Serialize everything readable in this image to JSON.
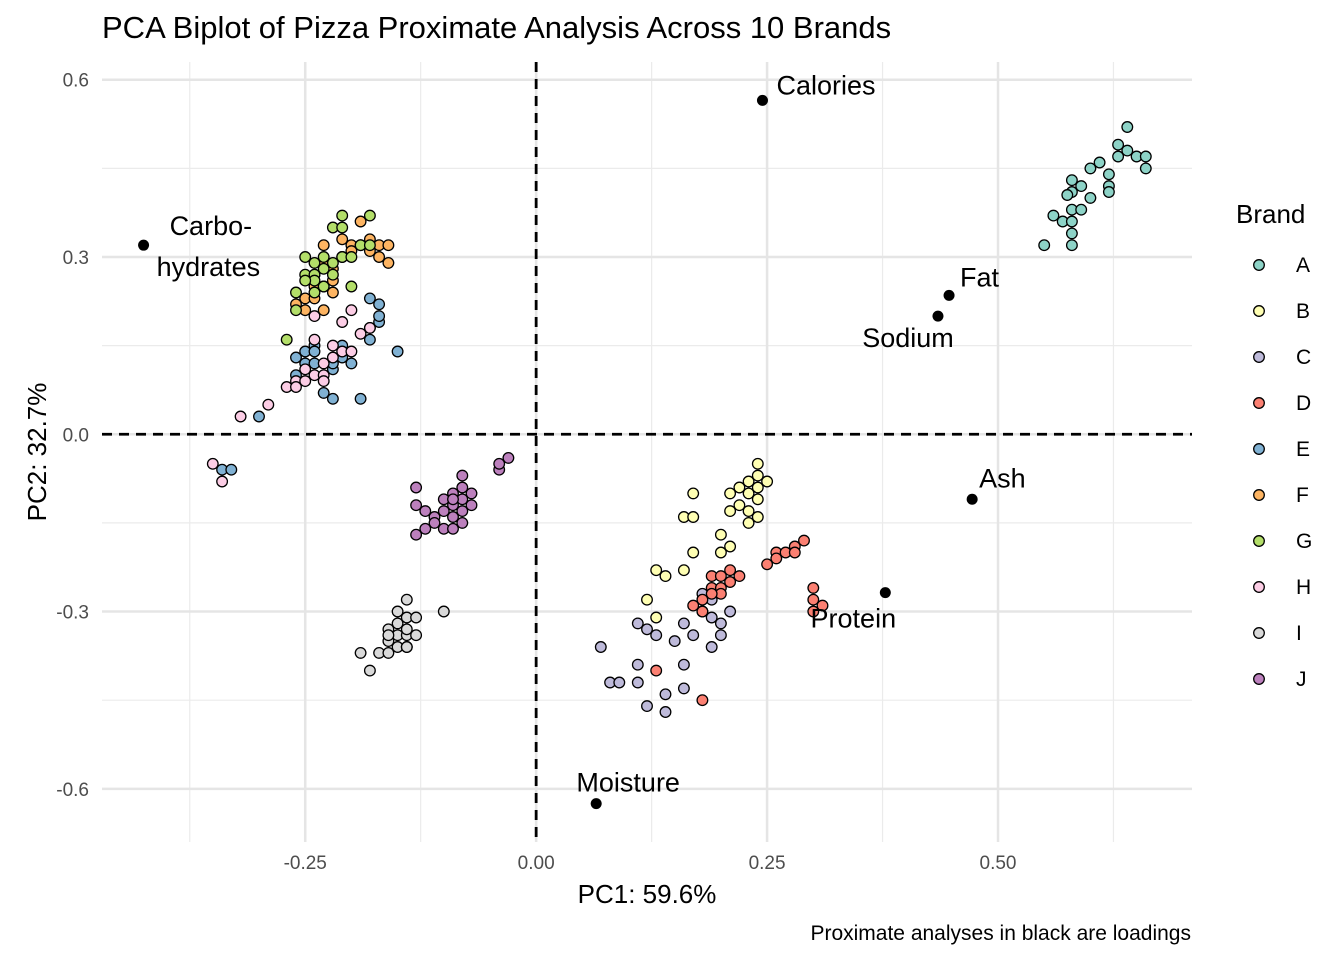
{
  "chart_data": {
    "type": "scatter",
    "title": "PCA Biplot of Pizza Proximate Analysis Across 10 Brands",
    "xlabel": "PC1: 59.6%",
    "ylabel": "PC2: 32.7%",
    "caption": "Proximate analyses in black are loadings",
    "xlim": [
      -0.47,
      0.71
    ],
    "ylim": [
      -0.69,
      0.63
    ],
    "xticks": [
      -0.25,
      0.0,
      0.25,
      0.5
    ],
    "xtick_labels": [
      "-0.25",
      "0.00",
      "0.25",
      "0.50"
    ],
    "yticks": [
      0.6,
      0.3,
      0.0,
      -0.3,
      -0.6
    ],
    "ytick_labels": [
      "0.6",
      "0.3",
      "0.0",
      "-0.3",
      "-0.6"
    ],
    "grid": true,
    "legend": {
      "title": "Brand",
      "position": "right"
    },
    "reference_lines": {
      "x": 0,
      "y": 0,
      "style": "dashed"
    },
    "series": [
      {
        "name": "A",
        "color": "#8DD3C7",
        "points": [
          [
            0.55,
            0.32
          ],
          [
            0.56,
            0.37
          ],
          [
            0.57,
            0.36
          ],
          [
            0.58,
            0.34
          ],
          [
            0.58,
            0.32
          ],
          [
            0.58,
            0.38
          ],
          [
            0.58,
            0.36
          ],
          [
            0.59,
            0.38
          ],
          [
            0.58,
            0.41
          ],
          [
            0.58,
            0.43
          ],
          [
            0.59,
            0.42
          ],
          [
            0.6,
            0.4
          ],
          [
            0.6,
            0.45
          ],
          [
            0.61,
            0.46
          ],
          [
            0.62,
            0.42
          ],
          [
            0.62,
            0.44
          ],
          [
            0.63,
            0.47
          ],
          [
            0.63,
            0.49
          ],
          [
            0.64,
            0.48
          ],
          [
            0.64,
            0.52
          ],
          [
            0.65,
            0.47
          ],
          [
            0.66,
            0.47
          ],
          [
            0.66,
            0.45
          ],
          [
            0.62,
            0.41
          ],
          [
            0.575,
            0.405
          ]
        ]
      },
      {
        "name": "B",
        "color": "#FFFFB3",
        "points": [
          [
            0.12,
            -0.28
          ],
          [
            0.13,
            -0.31
          ],
          [
            0.13,
            -0.23
          ],
          [
            0.14,
            -0.24
          ],
          [
            0.16,
            -0.23
          ],
          [
            0.16,
            -0.14
          ],
          [
            0.17,
            -0.14
          ],
          [
            0.17,
            -0.1
          ],
          [
            0.17,
            -0.2
          ],
          [
            0.2,
            -0.17
          ],
          [
            0.2,
            -0.2
          ],
          [
            0.21,
            -0.19
          ],
          [
            0.21,
            -0.13
          ],
          [
            0.21,
            -0.1
          ],
          [
            0.22,
            -0.12
          ],
          [
            0.22,
            -0.09
          ],
          [
            0.23,
            -0.15
          ],
          [
            0.23,
            -0.13
          ],
          [
            0.23,
            -0.08
          ],
          [
            0.24,
            -0.09
          ],
          [
            0.24,
            -0.07
          ],
          [
            0.24,
            -0.11
          ],
          [
            0.25,
            -0.08
          ],
          [
            0.24,
            -0.14
          ],
          [
            0.24,
            -0.05
          ],
          [
            0.23,
            -0.1
          ]
        ]
      },
      {
        "name": "C",
        "color": "#BEBADA",
        "points": [
          [
            0.07,
            -0.36
          ],
          [
            0.08,
            -0.42
          ],
          [
            0.09,
            -0.42
          ],
          [
            0.11,
            -0.39
          ],
          [
            0.11,
            -0.42
          ],
          [
            0.11,
            -0.32
          ],
          [
            0.12,
            -0.33
          ],
          [
            0.12,
            -0.46
          ],
          [
            0.13,
            -0.34
          ],
          [
            0.14,
            -0.44
          ],
          [
            0.14,
            -0.47
          ],
          [
            0.15,
            -0.35
          ],
          [
            0.16,
            -0.39
          ],
          [
            0.16,
            -0.43
          ],
          [
            0.16,
            -0.32
          ],
          [
            0.17,
            -0.34
          ],
          [
            0.18,
            -0.28
          ],
          [
            0.18,
            -0.3
          ],
          [
            0.19,
            -0.31
          ],
          [
            0.19,
            -0.36
          ],
          [
            0.2,
            -0.34
          ],
          [
            0.2,
            -0.32
          ],
          [
            0.21,
            -0.3
          ],
          [
            0.18,
            -0.27
          ],
          [
            0.19,
            -0.28
          ]
        ]
      },
      {
        "name": "D",
        "color": "#FB8072",
        "points": [
          [
            0.13,
            -0.4
          ],
          [
            0.18,
            -0.45
          ],
          [
            0.17,
            -0.29
          ],
          [
            0.18,
            -0.3
          ],
          [
            0.18,
            -0.28
          ],
          [
            0.19,
            -0.26
          ],
          [
            0.19,
            -0.24
          ],
          [
            0.2,
            -0.24
          ],
          [
            0.2,
            -0.26
          ],
          [
            0.21,
            -0.25
          ],
          [
            0.21,
            -0.23
          ],
          [
            0.22,
            -0.24
          ],
          [
            0.2,
            -0.27
          ],
          [
            0.25,
            -0.22
          ],
          [
            0.26,
            -0.2
          ],
          [
            0.26,
            -0.21
          ],
          [
            0.27,
            -0.2
          ],
          [
            0.28,
            -0.19
          ],
          [
            0.28,
            -0.2
          ],
          [
            0.29,
            -0.18
          ],
          [
            0.3,
            -0.26
          ],
          [
            0.3,
            -0.28
          ],
          [
            0.3,
            -0.3
          ],
          [
            0.31,
            -0.29
          ],
          [
            0.19,
            -0.27
          ]
        ]
      },
      {
        "name": "E",
        "color": "#80B1D3",
        "points": [
          [
            -0.34,
            -0.06
          ],
          [
            -0.33,
            -0.06
          ],
          [
            -0.3,
            0.03
          ],
          [
            -0.26,
            0.13
          ],
          [
            -0.26,
            0.1
          ],
          [
            -0.25,
            0.14
          ],
          [
            -0.25,
            0.12
          ],
          [
            -0.24,
            0.12
          ],
          [
            -0.24,
            0.15
          ],
          [
            -0.23,
            0.07
          ],
          [
            -0.22,
            0.06
          ],
          [
            -0.22,
            0.11
          ],
          [
            -0.21,
            0.13
          ],
          [
            -0.21,
            0.15
          ],
          [
            -0.2,
            0.12
          ],
          [
            -0.19,
            0.06
          ],
          [
            -0.18,
            0.16
          ],
          [
            -0.18,
            0.18
          ],
          [
            -0.17,
            0.19
          ],
          [
            -0.17,
            0.2
          ],
          [
            -0.17,
            0.22
          ],
          [
            -0.18,
            0.23
          ],
          [
            -0.15,
            0.14
          ],
          [
            -0.22,
            0.12
          ],
          [
            -0.24,
            0.14
          ]
        ]
      },
      {
        "name": "F",
        "color": "#FDB462",
        "points": [
          [
            -0.26,
            0.22
          ],
          [
            -0.25,
            0.21
          ],
          [
            -0.25,
            0.23
          ],
          [
            -0.24,
            0.25
          ],
          [
            -0.24,
            0.27
          ],
          [
            -0.23,
            0.29
          ],
          [
            -0.23,
            0.25
          ],
          [
            -0.23,
            0.21
          ],
          [
            -0.22,
            0.24
          ],
          [
            -0.22,
            0.26
          ],
          [
            -0.22,
            0.28
          ],
          [
            -0.21,
            0.3
          ],
          [
            -0.21,
            0.33
          ],
          [
            -0.2,
            0.32
          ],
          [
            -0.2,
            0.31
          ],
          [
            -0.19,
            0.32
          ],
          [
            -0.19,
            0.36
          ],
          [
            -0.18,
            0.33
          ],
          [
            -0.18,
            0.31
          ],
          [
            -0.17,
            0.3
          ],
          [
            -0.17,
            0.32
          ],
          [
            -0.16,
            0.29
          ],
          [
            -0.16,
            0.32
          ],
          [
            -0.23,
            0.32
          ],
          [
            -0.24,
            0.23
          ]
        ]
      },
      {
        "name": "G",
        "color": "#B3DE69",
        "points": [
          [
            -0.27,
            0.16
          ],
          [
            -0.26,
            0.24
          ],
          [
            -0.26,
            0.21
          ],
          [
            -0.25,
            0.27
          ],
          [
            -0.25,
            0.3
          ],
          [
            -0.24,
            0.29
          ],
          [
            -0.24,
            0.27
          ],
          [
            -0.24,
            0.26
          ],
          [
            -0.23,
            0.28
          ],
          [
            -0.23,
            0.3
          ],
          [
            -0.23,
            0.25
          ],
          [
            -0.22,
            0.27
          ],
          [
            -0.22,
            0.29
          ],
          [
            -0.22,
            0.35
          ],
          [
            -0.21,
            0.37
          ],
          [
            -0.21,
            0.35
          ],
          [
            -0.21,
            0.3
          ],
          [
            -0.2,
            0.3
          ],
          [
            -0.2,
            0.25
          ],
          [
            -0.19,
            0.32
          ],
          [
            -0.18,
            0.37
          ],
          [
            -0.18,
            0.32
          ],
          [
            -0.24,
            0.24
          ],
          [
            -0.25,
            0.26
          ]
        ]
      },
      {
        "name": "H",
        "color": "#FCCDE5",
        "points": [
          [
            -0.35,
            -0.05
          ],
          [
            -0.34,
            -0.08
          ],
          [
            -0.32,
            0.03
          ],
          [
            -0.29,
            0.05
          ],
          [
            -0.27,
            0.08
          ],
          [
            -0.26,
            0.09
          ],
          [
            -0.26,
            0.08
          ],
          [
            -0.25,
            0.09
          ],
          [
            -0.25,
            0.11
          ],
          [
            -0.24,
            0.1
          ],
          [
            -0.24,
            0.16
          ],
          [
            -0.24,
            0.2
          ],
          [
            -0.23,
            0.1
          ],
          [
            -0.23,
            0.12
          ],
          [
            -0.22,
            0.13
          ],
          [
            -0.22,
            0.15
          ],
          [
            -0.21,
            0.14
          ],
          [
            -0.21,
            0.19
          ],
          [
            -0.2,
            0.14
          ],
          [
            -0.2,
            0.21
          ],
          [
            -0.19,
            0.17
          ],
          [
            -0.18,
            0.18
          ],
          [
            -0.23,
            0.09
          ]
        ]
      },
      {
        "name": "I",
        "color": "#D9D9D9",
        "points": [
          [
            -0.19,
            -0.37
          ],
          [
            -0.18,
            -0.4
          ],
          [
            -0.17,
            -0.37
          ],
          [
            -0.16,
            -0.37
          ],
          [
            -0.16,
            -0.33
          ],
          [
            -0.16,
            -0.35
          ],
          [
            -0.15,
            -0.36
          ],
          [
            -0.15,
            -0.34
          ],
          [
            -0.15,
            -0.32
          ],
          [
            -0.15,
            -0.3
          ],
          [
            -0.14,
            -0.36
          ],
          [
            -0.14,
            -0.34
          ],
          [
            -0.14,
            -0.33
          ],
          [
            -0.14,
            -0.31
          ],
          [
            -0.14,
            -0.28
          ],
          [
            -0.13,
            -0.34
          ],
          [
            -0.13,
            -0.31
          ],
          [
            -0.1,
            -0.3
          ],
          [
            -0.16,
            -0.34
          ],
          [
            -0.14,
            -0.36
          ]
        ]
      },
      {
        "name": "J",
        "color": "#BC80BD",
        "points": [
          [
            -0.13,
            -0.17
          ],
          [
            -0.13,
            -0.09
          ],
          [
            -0.13,
            -0.12
          ],
          [
            -0.12,
            -0.13
          ],
          [
            -0.12,
            -0.16
          ],
          [
            -0.11,
            -0.14
          ],
          [
            -0.11,
            -0.15
          ],
          [
            -0.1,
            -0.11
          ],
          [
            -0.1,
            -0.13
          ],
          [
            -0.1,
            -0.16
          ],
          [
            -0.09,
            -0.14
          ],
          [
            -0.09,
            -0.1
          ],
          [
            -0.09,
            -0.12
          ],
          [
            -0.09,
            -0.16
          ],
          [
            -0.08,
            -0.09
          ],
          [
            -0.08,
            -0.11
          ],
          [
            -0.08,
            -0.13
          ],
          [
            -0.08,
            -0.15
          ],
          [
            -0.08,
            -0.07
          ],
          [
            -0.07,
            -0.1
          ],
          [
            -0.07,
            -0.12
          ],
          [
            -0.04,
            -0.06
          ],
          [
            -0.04,
            -0.05
          ],
          [
            -0.03,
            -0.04
          ],
          [
            -0.09,
            -0.11
          ]
        ]
      }
    ],
    "loadings": [
      {
        "name": "Calories",
        "x": 0.245,
        "y": 0.565
      },
      {
        "name": "Carbo-",
        "name2": "hydrates",
        "x": -0.425,
        "y": 0.32
      },
      {
        "name": "Fat",
        "x": 0.447,
        "y": 0.235
      },
      {
        "name": "Sodium",
        "x": 0.435,
        "y": 0.2
      },
      {
        "name": "Ash",
        "x": 0.472,
        "y": -0.11
      },
      {
        "name": "Protein",
        "x": 0.378,
        "y": -0.268
      },
      {
        "name": "Moisture",
        "x": 0.065,
        "y": -0.625
      }
    ]
  }
}
